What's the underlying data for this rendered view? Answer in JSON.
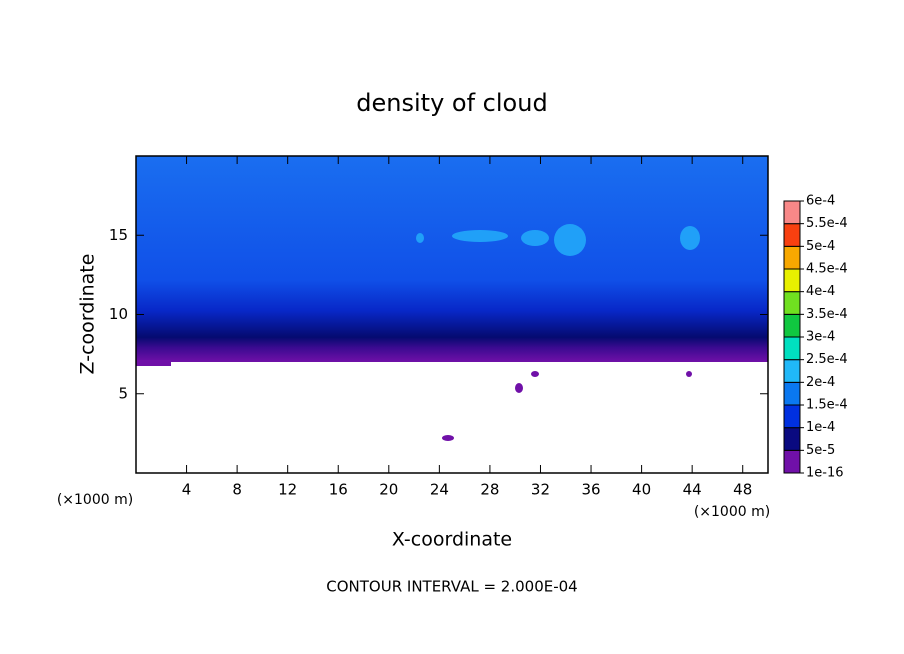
{
  "chart_data": {
    "type": "contour",
    "title": "density of cloud",
    "x_label": "X-coordinate",
    "y_label": "Z-coordinate",
    "x_unit": "(×1000 m)",
    "y_unit": "(×1000 m)",
    "note": "CONTOUR INTERVAL = 2.000E-04",
    "xlim": [
      0,
      50
    ],
    "xticks": [
      4,
      8,
      12,
      16,
      20,
      24,
      28,
      32,
      36,
      40,
      44,
      48
    ],
    "ylim": [
      0,
      20
    ],
    "yticks": [
      5,
      10,
      15
    ],
    "colorbar": {
      "ticks": [
        {
          "value": 1e-16,
          "label": "1e-16"
        },
        {
          "value": 5e-05,
          "label": "5e-5"
        },
        {
          "value": 0.0001,
          "label": "1e-4"
        },
        {
          "value": 0.00015,
          "label": "1.5e-4"
        },
        {
          "value": 0.0002,
          "label": "2e-4"
        },
        {
          "value": 0.00025,
          "label": "2.5e-4"
        },
        {
          "value": 0.0003,
          "label": "3e-4"
        },
        {
          "value": 0.00035,
          "label": "3.5e-4"
        },
        {
          "value": 0.0004,
          "label": "4e-4"
        },
        {
          "value": 0.00045,
          "label": "4.5e-4"
        },
        {
          "value": 0.0005,
          "label": "5e-4"
        },
        {
          "value": 0.00055,
          "label": "5.5e-4"
        },
        {
          "value": 0.0006,
          "label": "6e-4"
        }
      ],
      "colors": [
        "#7010a8",
        "#0a0a80",
        "#0030e0",
        "#0a78f0",
        "#20b8f8",
        "#00e0c0",
        "#10c840",
        "#70e020",
        "#e8f000",
        "#f8a800",
        "#f84010",
        "#f88888"
      ]
    }
  }
}
